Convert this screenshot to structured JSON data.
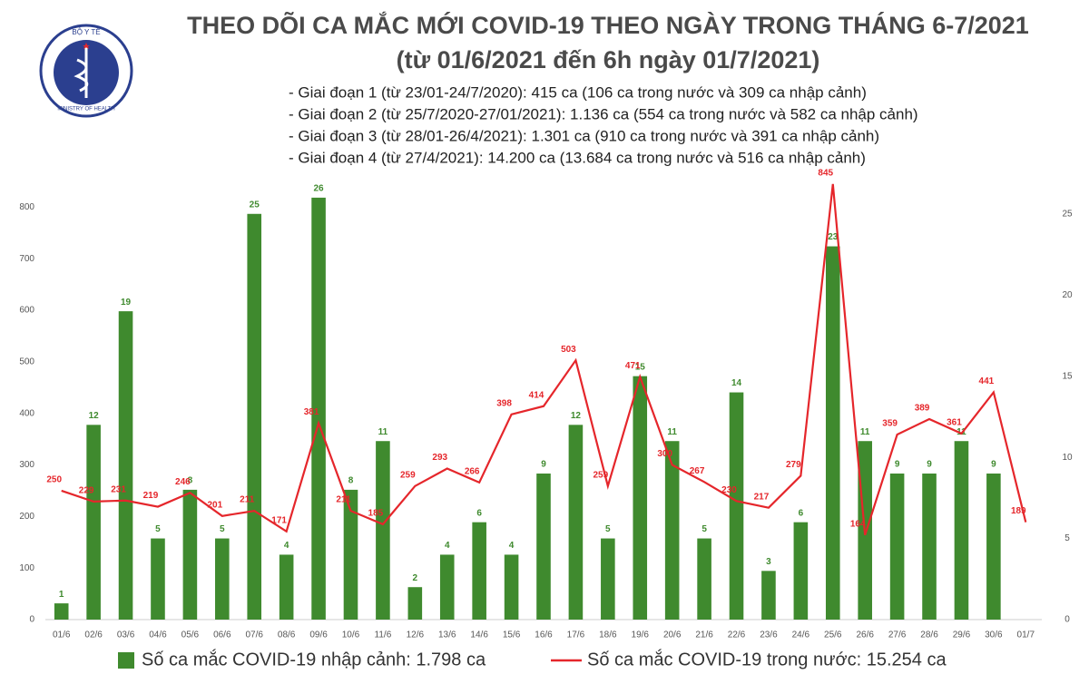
{
  "logo": {
    "top": "BỘ Y TẾ",
    "bottom": "MINISTRY OF HEALTH"
  },
  "chart_data": {
    "type": "bar-line",
    "title": "THEO DÕI CA MẮC MỚI COVID-19 THEO NGÀY TRONG THÁNG 6-7/2021",
    "subtitle": "(từ 01/6/2021 đến 6h ngày 01/7/2021)",
    "annotations": [
      "- Giai đoạn 1 (từ 23/01-24/7/2020): 415 ca (106 ca trong nước và 309 ca nhập cảnh)",
      "- Giai đoạn 2 (từ 25/7/2020-27/01/2021): 1.136 ca (554 ca trong nước và 582 ca nhập cảnh)",
      "- Giai đoạn 3 (từ 28/01-26/4/2021): 1.301 ca (910 ca trong nước và 391 ca nhập cảnh)",
      "- Giai đoạn 4 (từ 27/4/2021): 14.200 ca (13.684 ca trong nước và 516 ca nhập cảnh)"
    ],
    "categories": [
      "01/6",
      "02/6",
      "03/6",
      "04/6",
      "05/6",
      "06/6",
      "07/6",
      "08/6",
      "09/6",
      "10/6",
      "11/6",
      "12/6",
      "13/6",
      "14/6",
      "15/6",
      "16/6",
      "17/6",
      "18/6",
      "19/6",
      "20/6",
      "21/6",
      "22/6",
      "23/6",
      "24/6",
      "25/6",
      "26/6",
      "27/6",
      "28/6",
      "29/6",
      "30/6",
      "01/7"
    ],
    "series": [
      {
        "name": "Số ca mắc COVID-19 nhập cảnh: 1.798 ca",
        "type": "bar",
        "axis": "y2",
        "color": "#3f8a2e",
        "values": [
          1,
          12,
          19,
          5,
          8,
          5,
          25,
          4,
          26,
          8,
          11,
          2,
          4,
          6,
          4,
          9,
          12,
          5,
          15,
          11,
          5,
          14,
          3,
          6,
          23,
          11,
          9,
          9,
          11,
          9,
          null
        ]
      },
      {
        "name": "Số ca mắc COVID-19 trong nước: 15.254 ca",
        "type": "line",
        "axis": "y",
        "color": "#e5262b",
        "values": [
          250,
          229,
          231,
          219,
          246,
          201,
          211,
          171,
          381,
          211,
          185,
          259,
          293,
          266,
          398,
          414,
          503,
          259,
          471,
          300,
          267,
          230,
          217,
          279,
          845,
          164,
          359,
          389,
          361,
          441,
          189
        ]
      }
    ],
    "ylim": [
      0,
      850
    ],
    "yticks": [
      0,
      100,
      200,
      300,
      400,
      500,
      600,
      700,
      800
    ],
    "y2lim": [
      0,
      27
    ],
    "y2ticks": [
      0,
      5,
      10,
      15,
      20,
      25
    ]
  }
}
